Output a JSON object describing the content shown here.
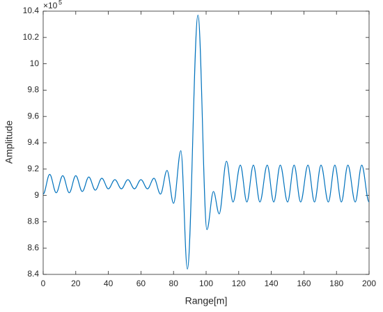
{
  "chart_data": {
    "type": "line",
    "xlabel": "Range[m]",
    "ylabel": "Amplitude",
    "y_multiplier": "×10",
    "y_exponent": "5",
    "x": [
      0,
      4,
      8,
      12,
      16,
      20,
      24,
      28,
      32,
      36,
      40,
      44,
      48,
      52,
      56,
      60,
      64,
      68,
      72,
      76,
      80,
      84.5,
      88.5,
      95,
      100.5,
      104.5,
      108,
      112.5,
      116.5,
      121,
      125,
      129,
      133,
      137.5,
      141.5,
      145.5,
      150,
      154,
      158,
      162.5,
      166.5,
      170.5,
      175,
      179,
      183,
      187,
      191.5,
      195.5,
      200
    ],
    "series": [
      {
        "name": "Amplitude",
        "color": "#0072bd",
        "values": [
          9.01,
          9.16,
          9.02,
          9.15,
          9.02,
          9.15,
          9.03,
          9.14,
          9.04,
          9.13,
          9.05,
          9.12,
          9.05,
          9.12,
          9.05,
          9.12,
          9.05,
          9.13,
          9.01,
          9.19,
          8.94,
          9.34,
          8.44,
          10.37,
          8.74,
          9.03,
          8.86,
          9.26,
          8.95,
          9.23,
          8.95,
          9.23,
          8.95,
          9.23,
          8.95,
          9.23,
          8.95,
          9.23,
          8.95,
          9.23,
          8.95,
          9.23,
          8.95,
          9.23,
          8.95,
          9.23,
          8.95,
          9.23,
          8.95
        ]
      }
    ],
    "xlim": [
      0,
      200
    ],
    "xticks": [
      0,
      20,
      40,
      60,
      80,
      100,
      120,
      140,
      160,
      180,
      200
    ],
    "ylim": [
      8.4,
      10.4
    ],
    "yticks": [
      8.4,
      8.6,
      8.8,
      9,
      9.2,
      9.4,
      9.6,
      9.8,
      10,
      10.2,
      10.4
    ],
    "grid": false
  }
}
